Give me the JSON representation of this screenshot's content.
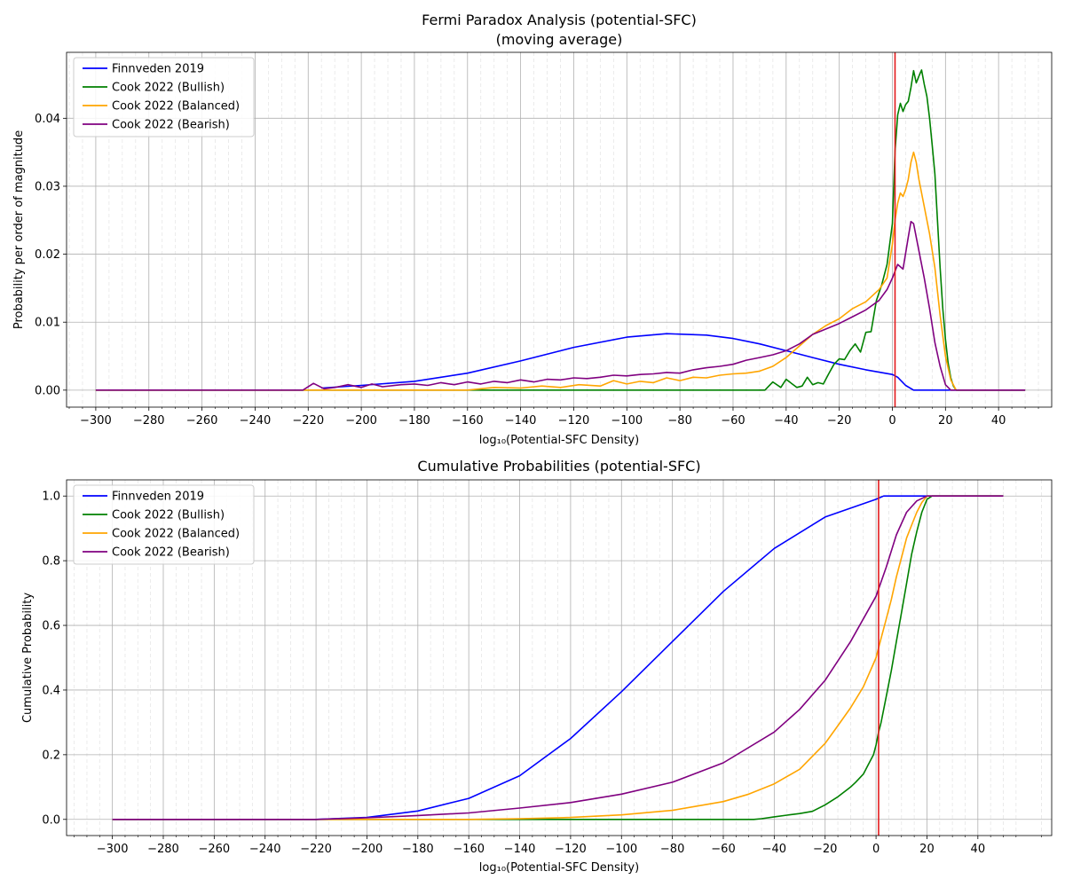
{
  "chart_data": [
    {
      "type": "line",
      "title": "Fermi Paradox Analysis (potential-SFC)",
      "subtitle": "(moving average)",
      "xlabel": "log₁₀(Potential-SFC Density)",
      "ylabel": "Probability per order of magnitude",
      "xlim": [
        -311,
        60
      ],
      "ylim": [
        -0.0025,
        0.0497
      ],
      "xticks": [
        -300,
        -280,
        -260,
        -240,
        -220,
        -200,
        -180,
        -160,
        -140,
        -120,
        -100,
        -80,
        -60,
        -40,
        -20,
        0,
        20,
        40
      ],
      "xtick_labels": [
        "−300",
        "−280",
        "−260",
        "−240",
        "−220",
        "−200",
        "−180",
        "−160",
        "−140",
        "−120",
        "−100",
        "−80",
        "−60",
        "−40",
        "−20",
        "0",
        "20",
        "40"
      ],
      "yticks": [
        0,
        0.01,
        0.02,
        0.03,
        0.04
      ],
      "ytick_labels": [
        "0.00",
        "0.01",
        "0.02",
        "0.03",
        "0.04"
      ],
      "grid": true,
      "legend_position": "top-left",
      "vline_x": 1,
      "vline_color": "#e31a1c",
      "series": [
        {
          "name": "Finnveden 2019",
          "color": "#0000ff",
          "x": [
            -215,
            -200,
            -180,
            -160,
            -140,
            -120,
            -100,
            -85,
            -70,
            -60,
            -50,
            -40,
            -30,
            -20,
            -10,
            0,
            2,
            5,
            8,
            12,
            20,
            50
          ],
          "y": [
            0.0003,
            0.0007,
            0.0013,
            0.0025,
            0.0043,
            0.0063,
            0.0078,
            0.0083,
            0.0081,
            0.0076,
            0.0068,
            0.0058,
            0.0048,
            0.0038,
            0.003,
            0.0023,
            0.0019,
            0.0007,
            0,
            0,
            0,
            0
          ]
        },
        {
          "name": "Cook 2022 (Bullish)",
          "color": "#008000",
          "x": [
            -300,
            -48,
            -45,
            -42,
            -40,
            -38,
            -36,
            -34,
            -32,
            -30,
            -28,
            -26,
            -24,
            -22,
            -20,
            -18,
            -16,
            -14,
            -12,
            -10,
            -8,
            -6,
            -4,
            -2,
            0,
            1,
            2,
            3,
            4,
            5,
            6,
            7,
            8,
            9,
            10,
            11,
            12,
            13,
            14,
            15,
            16,
            17,
            18,
            19,
            20,
            21,
            22,
            23,
            24,
            50
          ],
          "y": [
            0,
            0,
            0.0012,
            0.0004,
            0.0016,
            0.001,
            0.0004,
            0.0006,
            0.0019,
            0.0008,
            0.0011,
            0.0009,
            0.0024,
            0.0038,
            0.0046,
            0.0045,
            0.0058,
            0.0068,
            0.0056,
            0.0085,
            0.0086,
            0.0132,
            0.0155,
            0.0185,
            0.0245,
            0.0352,
            0.0405,
            0.0422,
            0.041,
            0.042,
            0.0425,
            0.0445,
            0.047,
            0.0452,
            0.0462,
            0.0471,
            0.045,
            0.0432,
            0.04,
            0.036,
            0.0318,
            0.025,
            0.018,
            0.012,
            0.0075,
            0.004,
            0.0018,
            0.0006,
            0,
            0
          ]
        },
        {
          "name": "Cook 2022 (Balanced)",
          "color": "#ffa500",
          "x": [
            -300,
            -160,
            -150,
            -140,
            -132,
            -125,
            -118,
            -110,
            -105,
            -100,
            -95,
            -90,
            -85,
            -80,
            -75,
            -70,
            -65,
            -60,
            -55,
            -50,
            -45,
            -40,
            -35,
            -30,
            -25,
            -20,
            -15,
            -10,
            -5,
            -2,
            0,
            1,
            2,
            3,
            4,
            5,
            6,
            7,
            8,
            9,
            10,
            12,
            14,
            16,
            18,
            20,
            22,
            24,
            50
          ],
          "y": [
            0,
            0,
            0.0004,
            0.0003,
            0.0006,
            0.0004,
            0.0008,
            0.0006,
            0.0014,
            0.0009,
            0.0013,
            0.0011,
            0.0018,
            0.0014,
            0.0019,
            0.0018,
            0.0022,
            0.0024,
            0.0025,
            0.0028,
            0.0035,
            0.0048,
            0.0065,
            0.0082,
            0.0095,
            0.0105,
            0.012,
            0.013,
            0.0148,
            0.0165,
            0.0215,
            0.025,
            0.0275,
            0.029,
            0.0285,
            0.0295,
            0.031,
            0.0335,
            0.035,
            0.0335,
            0.031,
            0.027,
            0.023,
            0.018,
            0.011,
            0.005,
            0.0015,
            0,
            0
          ]
        },
        {
          "name": "Cook 2022 (Bearish)",
          "color": "#800080",
          "x": [
            -300,
            -222,
            -218,
            -214,
            -210,
            -205,
            -200,
            -196,
            -192,
            -185,
            -180,
            -175,
            -170,
            -165,
            -160,
            -155,
            -150,
            -145,
            -140,
            -135,
            -130,
            -125,
            -120,
            -115,
            -110,
            -105,
            -100,
            -95,
            -90,
            -85,
            -80,
            -75,
            -70,
            -65,
            -60,
            -55,
            -50,
            -45,
            -40,
            -35,
            -30,
            -25,
            -20,
            -15,
            -10,
            -5,
            -2,
            0,
            2,
            4,
            6,
            7,
            8,
            10,
            12,
            14,
            16,
            18,
            20,
            22,
            24,
            50
          ],
          "y": [
            0,
            0,
            0.001,
            0.0002,
            0.0004,
            0.0008,
            0.0004,
            0.0009,
            0.0005,
            0.0008,
            0.0009,
            0.0007,
            0.0011,
            0.0008,
            0.0012,
            0.0009,
            0.0013,
            0.0011,
            0.0015,
            0.0012,
            0.0016,
            0.0015,
            0.0018,
            0.0017,
            0.0019,
            0.0022,
            0.0021,
            0.0023,
            0.0024,
            0.0026,
            0.0025,
            0.003,
            0.0033,
            0.0035,
            0.0038,
            0.0044,
            0.0048,
            0.0052,
            0.0058,
            0.0068,
            0.0082,
            0.009,
            0.0098,
            0.0108,
            0.0118,
            0.0132,
            0.0148,
            0.0165,
            0.0185,
            0.0178,
            0.0225,
            0.0248,
            0.0245,
            0.0205,
            0.0165,
            0.012,
            0.007,
            0.0035,
            0.0008,
            0,
            0,
            0
          ]
        }
      ]
    },
    {
      "type": "line",
      "title": "Cumulative Probabilities (potential-SFC)",
      "xlabel": "log₁₀(Potential-SFC Density)",
      "ylabel": "Cumulative Probability",
      "xlim": [
        -318,
        69
      ],
      "ylim": [
        -0.05,
        1.05
      ],
      "xticks": [
        -300,
        -280,
        -260,
        -240,
        -220,
        -200,
        -180,
        -160,
        -140,
        -120,
        -100,
        -80,
        -60,
        -40,
        -20,
        0,
        20,
        40
      ],
      "xtick_labels": [
        "−300",
        "−280",
        "−260",
        "−240",
        "−220",
        "−200",
        "−180",
        "−160",
        "−140",
        "−120",
        "−100",
        "−80",
        "−60",
        "−40",
        "−20",
        "0",
        "20",
        "40"
      ],
      "yticks": [
        0,
        0.2,
        0.4,
        0.6,
        0.8,
        1.0
      ],
      "ytick_labels": [
        "0.0",
        "0.2",
        "0.4",
        "0.6",
        "0.8",
        "1.0"
      ],
      "grid": true,
      "legend_position": "top-left",
      "vline_x": 1,
      "vline_color": "#e31a1c",
      "series": [
        {
          "name": "Finnveden 2019",
          "color": "#0000ff",
          "x": [
            -300,
            -220,
            -200,
            -180,
            -160,
            -140,
            -120,
            -100,
            -80,
            -60,
            -40,
            -20,
            0,
            3,
            10,
            20,
            50
          ],
          "y": [
            0,
            0,
            0.006,
            0.026,
            0.065,
            0.135,
            0.25,
            0.395,
            0.55,
            0.705,
            0.838,
            0.935,
            0.99,
            1,
            1,
            1,
            1
          ]
        },
        {
          "name": "Cook 2022 (Bullish)",
          "color": "#008000",
          "x": [
            -300,
            -48,
            -45,
            -40,
            -35,
            -30,
            -25,
            -20,
            -15,
            -10,
            -8,
            -5,
            -3,
            -1,
            0,
            1,
            2,
            4,
            6,
            8,
            10,
            12,
            14,
            16,
            18,
            20,
            22,
            50
          ],
          "y": [
            0,
            0,
            0.002,
            0.008,
            0.013,
            0.018,
            0.025,
            0.045,
            0.07,
            0.1,
            0.115,
            0.14,
            0.17,
            0.2,
            0.23,
            0.27,
            0.3,
            0.38,
            0.46,
            0.55,
            0.64,
            0.73,
            0.82,
            0.89,
            0.95,
            0.99,
            1,
            1
          ]
        },
        {
          "name": "Cook 2022 (Balanced)",
          "color": "#ffa500",
          "x": [
            -300,
            -160,
            -140,
            -120,
            -100,
            -80,
            -60,
            -50,
            -40,
            -30,
            -20,
            -15,
            -10,
            -5,
            0,
            2,
            4,
            6,
            8,
            10,
            12,
            14,
            16,
            18,
            20,
            50
          ],
          "y": [
            0,
            0,
            0.002,
            0.006,
            0.014,
            0.028,
            0.055,
            0.078,
            0.11,
            0.155,
            0.235,
            0.29,
            0.345,
            0.41,
            0.5,
            0.56,
            0.62,
            0.68,
            0.75,
            0.81,
            0.87,
            0.91,
            0.95,
            0.98,
            1,
            1
          ]
        },
        {
          "name": "Cook 2022 (Bearish)",
          "color": "#800080",
          "x": [
            -300,
            -220,
            -200,
            -180,
            -160,
            -140,
            -120,
            -100,
            -80,
            -60,
            -40,
            -30,
            -20,
            -10,
            0,
            4,
            8,
            12,
            16,
            20,
            50
          ],
          "y": [
            0,
            0,
            0.005,
            0.012,
            0.02,
            0.035,
            0.052,
            0.078,
            0.115,
            0.175,
            0.27,
            0.34,
            0.43,
            0.55,
            0.69,
            0.78,
            0.88,
            0.95,
            0.985,
            1,
            1
          ]
        }
      ]
    }
  ]
}
